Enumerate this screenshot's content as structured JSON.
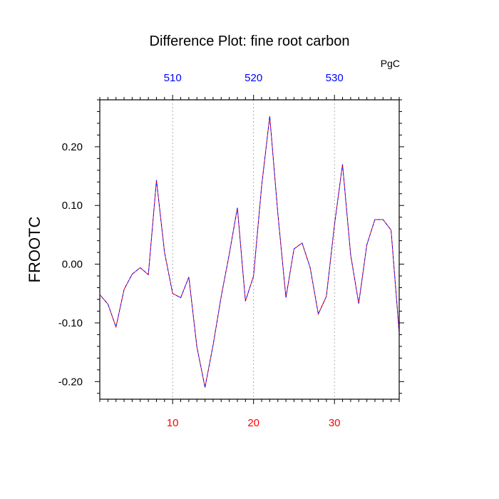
{
  "chart_data": {
    "type": "line",
    "title": "Difference Plot: fine root carbon",
    "units": "PgC",
    "ylabel": "FROOTC",
    "xlabel": "",
    "xlim": [
      1,
      38
    ],
    "ylim": [
      -0.23,
      0.28
    ],
    "yticks": [
      {
        "value": 0.2,
        "label": "0.20"
      },
      {
        "value": 0.1,
        "label": "0.10"
      },
      {
        "value": 0.0,
        "label": "0.00"
      },
      {
        "value": -0.1,
        "label": "-0.10"
      },
      {
        "value": -0.2,
        "label": "-0.20"
      }
    ],
    "xticks_bottom": [
      {
        "value": 10,
        "label": "10"
      },
      {
        "value": 20,
        "label": "20"
      },
      {
        "value": 30,
        "label": "30"
      }
    ],
    "xticks_top": [
      {
        "value": 10,
        "label": "510"
      },
      {
        "value": 20,
        "label": "520"
      },
      {
        "value": 30,
        "label": "530"
      }
    ],
    "grid": "vertical dotted at labeled ticks",
    "colors": {
      "bottom_axis_labels": "#ff0000",
      "top_axis_labels": "#0000ff",
      "series_dash_a": "#ff0000",
      "series_dash_b": "#0000ff"
    },
    "series": [
      {
        "x": [
          1,
          2,
          3,
          4,
          5,
          6,
          7,
          8,
          9,
          10,
          11,
          12,
          13,
          14,
          15,
          16,
          17,
          18,
          19,
          20,
          21,
          22,
          23,
          24,
          25,
          26,
          27,
          28,
          29,
          30,
          31,
          32,
          33,
          34,
          35,
          36,
          37,
          38
        ],
        "values": [
          -0.052,
          -0.068,
          -0.107,
          -0.043,
          -0.017,
          -0.006,
          -0.018,
          0.143,
          0.02,
          -0.05,
          -0.057,
          -0.022,
          -0.141,
          -0.21,
          -0.138,
          -0.055,
          0.017,
          0.096,
          -0.063,
          -0.02,
          0.133,
          0.252,
          0.087,
          -0.057,
          0.026,
          0.036,
          -0.006,
          -0.085,
          -0.055,
          0.067,
          0.17,
          0.016,
          -0.067,
          0.033,
          0.076,
          0.076,
          0.058,
          -0.117
        ]
      }
    ]
  }
}
